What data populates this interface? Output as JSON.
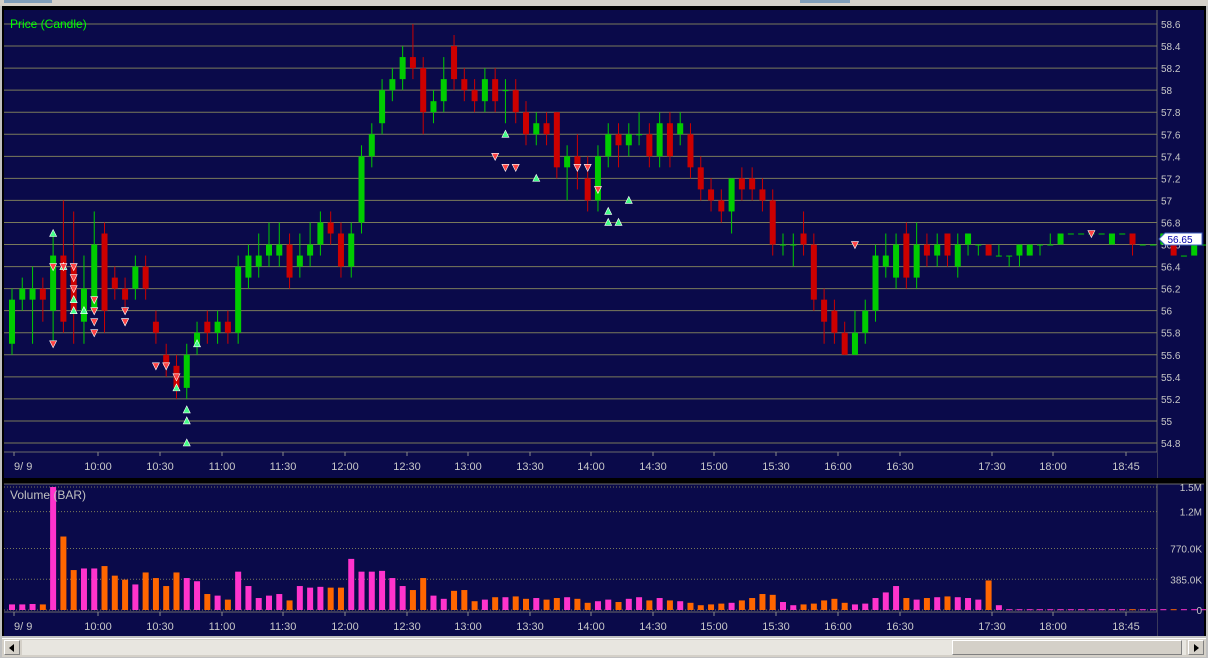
{
  "colors": {
    "panel": "#0a0a4a",
    "grid": "#7a7a5a",
    "up": "#00cc00",
    "down": "#cc0000",
    "axis_text": "#c8c8c8",
    "price_label": "#00ff00",
    "vol_label": "#c0c0c0",
    "vol_pink": "#ff33cc",
    "vol_orange": "#ff6600",
    "marker_up": "#44ff88",
    "marker_down": "#ff4444"
  },
  "chart_data": [
    {
      "type": "candlestick",
      "title": "Price (Candle)",
      "y_ticks": [
        "58.6",
        "58.4",
        "58.2",
        "58",
        "57.8",
        "57.6",
        "57.4",
        "57.2",
        "57",
        "56.8",
        "56.6",
        "56.4",
        "56.2",
        "56",
        "55.8",
        "55.6",
        "55.4",
        "55.2",
        "55",
        "54.8"
      ],
      "ylim": [
        54.7,
        58.7
      ],
      "last_price_label": "56.65",
      "x_ticks": [
        "9/ 9",
        "10:00",
        "10:30",
        "11:00",
        "11:30",
        "12:00",
        "12:30",
        "13:00",
        "13:30",
        "14:00",
        "14:30",
        "15:00",
        "15:30",
        "16:00",
        "16:30",
        "17:30",
        "18:00",
        "18:45"
      ],
      "candles": [
        [
          55.7,
          56.1,
          56.2,
          55.6
        ],
        [
          56.1,
          56.2,
          56.3,
          56.0
        ],
        [
          56.1,
          56.2,
          56.4,
          55.7
        ],
        [
          56.2,
          56.1,
          56.3,
          55.9
        ],
        [
          56.0,
          56.5,
          56.7,
          55.7
        ],
        [
          56.5,
          55.9,
          57.0,
          55.8
        ],
        [
          56.4,
          56.0,
          56.9,
          55.7
        ],
        [
          55.9,
          56.2,
          56.5,
          55.7
        ],
        [
          56.0,
          56.6,
          56.9,
          56.0
        ],
        [
          56.7,
          56.0,
          56.8,
          55.8
        ],
        [
          56.3,
          56.2,
          56.4,
          56.1
        ],
        [
          56.2,
          56.1,
          56.3,
          56.0
        ],
        [
          56.2,
          56.4,
          56.5,
          56.1
        ],
        [
          56.4,
          56.2,
          56.5,
          56.1
        ],
        [
          55.9,
          55.8,
          56.0,
          55.7
        ],
        [
          55.6,
          55.5,
          55.7,
          55.4
        ],
        [
          55.5,
          55.3,
          55.6,
          55.2
        ],
        [
          55.3,
          55.6,
          55.7,
          55.2
        ],
        [
          55.7,
          55.8,
          55.9,
          55.6
        ],
        [
          55.9,
          55.8,
          56.0,
          55.7
        ],
        [
          55.8,
          55.9,
          56.0,
          55.7
        ],
        [
          55.9,
          55.8,
          56.0,
          55.7
        ],
        [
          55.8,
          56.4,
          56.5,
          55.7
        ],
        [
          56.3,
          56.5,
          56.6,
          56.2
        ],
        [
          56.4,
          56.5,
          56.7,
          56.3
        ],
        [
          56.5,
          56.6,
          56.8,
          56.4
        ],
        [
          56.5,
          56.6,
          56.8,
          56.4
        ],
        [
          56.6,
          56.3,
          56.7,
          56.2
        ],
        [
          56.4,
          56.5,
          56.7,
          56.3
        ],
        [
          56.5,
          56.6,
          56.8,
          56.4
        ],
        [
          56.6,
          56.8,
          56.9,
          56.5
        ],
        [
          56.8,
          56.7,
          56.9,
          56.6
        ],
        [
          56.7,
          56.4,
          56.8,
          56.3
        ],
        [
          56.4,
          56.7,
          56.8,
          56.3
        ],
        [
          56.8,
          57.4,
          57.5,
          56.7
        ],
        [
          57.4,
          57.6,
          57.7,
          57.3
        ],
        [
          57.7,
          58.0,
          58.1,
          57.6
        ],
        [
          58.0,
          58.1,
          58.2,
          57.9
        ],
        [
          58.1,
          58.3,
          58.4,
          58.0
        ],
        [
          58.3,
          58.2,
          58.6,
          58.1
        ],
        [
          58.2,
          57.8,
          58.3,
          57.6
        ],
        [
          57.8,
          57.9,
          58.0,
          57.7
        ],
        [
          57.9,
          58.1,
          58.3,
          57.8
        ],
        [
          58.4,
          58.1,
          58.5,
          58.0
        ],
        [
          58.1,
          58.0,
          58.2,
          57.9
        ],
        [
          58.0,
          57.9,
          58.1,
          57.8
        ],
        [
          57.9,
          58.1,
          58.2,
          57.8
        ],
        [
          58.1,
          57.9,
          58.2,
          57.8
        ],
        [
          58.0,
          58.0,
          58.1,
          57.7
        ],
        [
          58.0,
          57.8,
          58.1,
          57.7
        ],
        [
          57.8,
          57.6,
          57.9,
          57.5
        ],
        [
          57.6,
          57.7,
          57.8,
          57.5
        ],
        [
          57.7,
          57.6,
          57.8,
          57.5
        ],
        [
          57.8,
          57.3,
          57.8,
          57.2
        ],
        [
          57.3,
          57.4,
          57.5,
          57.0
        ],
        [
          57.4,
          57.3,
          57.6,
          57.1
        ],
        [
          57.2,
          57.0,
          57.4,
          56.9
        ],
        [
          57.0,
          57.4,
          57.5,
          56.9
        ],
        [
          57.4,
          57.6,
          57.7,
          57.3
        ],
        [
          57.6,
          57.5,
          57.7,
          57.3
        ],
        [
          57.5,
          57.6,
          57.7,
          57.4
        ],
        [
          57.6,
          57.6,
          57.8,
          57.5
        ],
        [
          57.6,
          57.4,
          57.7,
          57.3
        ],
        [
          57.4,
          57.7,
          57.8,
          57.3
        ],
        [
          57.7,
          57.4,
          57.8,
          57.3
        ],
        [
          57.6,
          57.7,
          57.8,
          57.5
        ],
        [
          57.6,
          57.3,
          57.7,
          57.2
        ],
        [
          57.3,
          57.1,
          57.4,
          57.0
        ],
        [
          57.1,
          57.0,
          57.2,
          56.9
        ],
        [
          57.0,
          56.9,
          57.1,
          56.8
        ],
        [
          56.9,
          57.2,
          57.2,
          56.7
        ],
        [
          57.2,
          57.1,
          57.3,
          57.0
        ],
        [
          57.2,
          57.1,
          57.3,
          57.0
        ],
        [
          57.1,
          57.0,
          57.2,
          56.9
        ],
        [
          57.0,
          56.6,
          57.1,
          56.5
        ],
        [
          56.6,
          56.6,
          56.7,
          56.5
        ],
        [
          56.6,
          56.6,
          56.7,
          56.4
        ],
        [
          56.7,
          56.6,
          56.9,
          56.5
        ],
        [
          56.6,
          56.1,
          56.7,
          56.0
        ],
        [
          56.1,
          55.9,
          56.2,
          55.7
        ],
        [
          56.0,
          55.8,
          56.1,
          55.7
        ],
        [
          55.8,
          55.6,
          55.9,
          55.6
        ],
        [
          55.6,
          55.8,
          56.0,
          55.6
        ],
        [
          55.8,
          56.0,
          56.1,
          55.7
        ],
        [
          56.0,
          56.5,
          56.6,
          55.9
        ],
        [
          56.4,
          56.5,
          56.7,
          56.3
        ],
        [
          56.3,
          56.6,
          56.7,
          56.2
        ],
        [
          56.7,
          56.3,
          56.8,
          56.2
        ],
        [
          56.3,
          56.6,
          56.8,
          56.2
        ],
        [
          56.6,
          56.5,
          56.7,
          56.4
        ],
        [
          56.5,
          56.6,
          56.7,
          56.4
        ],
        [
          56.7,
          56.5,
          56.7,
          56.4
        ],
        [
          56.4,
          56.6,
          56.7,
          56.3
        ],
        [
          56.6,
          56.7,
          56.7,
          56.5
        ],
        [
          56.6,
          56.6,
          56.6,
          56.5
        ],
        [
          56.6,
          56.5,
          56.6,
          56.5
        ],
        [
          56.5,
          56.5,
          56.6,
          56.5
        ],
        [
          56.5,
          56.5,
          56.5,
          56.4
        ],
        [
          56.5,
          56.6,
          56.6,
          56.4
        ],
        [
          56.5,
          56.6,
          56.6,
          56.5
        ],
        [
          56.6,
          56.6,
          56.6,
          56.5
        ],
        [
          56.6,
          56.6,
          56.7,
          56.6
        ],
        [
          56.6,
          56.7,
          56.7,
          56.6
        ],
        [
          56.7,
          56.7,
          56.7,
          56.7
        ],
        [
          56.7,
          56.7,
          56.7,
          56.7
        ],
        [
          56.7,
          56.7,
          56.7,
          56.7
        ],
        [
          56.7,
          56.7,
          56.7,
          56.7
        ],
        [
          56.6,
          56.7,
          56.7,
          56.6
        ],
        [
          56.7,
          56.7,
          56.7,
          56.7
        ],
        [
          56.7,
          56.6,
          56.7,
          56.5
        ],
        [
          56.6,
          56.6,
          56.6,
          56.6
        ],
        [
          56.6,
          56.6,
          56.6,
          56.6
        ],
        [
          56.6,
          56.7,
          56.7,
          56.6
        ],
        [
          56.7,
          56.5,
          56.7,
          56.5
        ],
        [
          56.5,
          56.5,
          56.5,
          56.5
        ],
        [
          56.5,
          56.6,
          56.6,
          56.5
        ],
        [
          56.6,
          56.6,
          56.6,
          56.6
        ],
        [
          56.6,
          56.6,
          56.6,
          56.6
        ],
        [
          56.6,
          56.6,
          56.6,
          56.6
        ],
        [
          56.6,
          56.7,
          56.7,
          56.6
        ],
        [
          56.7,
          56.7,
          56.7,
          56.6
        ],
        [
          56.7,
          56.7,
          56.7,
          56.7
        ],
        [
          56.7,
          56.7,
          56.7,
          56.7
        ],
        [
          56.7,
          56.7,
          56.7,
          56.7
        ],
        [
          56.7,
          56.7,
          56.7,
          56.7
        ],
        [
          56.7,
          56.7,
          56.7,
          56.7
        ],
        [
          56.7,
          56.7,
          56.7,
          56.7
        ],
        [
          56.7,
          56.7,
          56.7,
          56.7
        ]
      ],
      "signals_up": [
        [
          4,
          56.7
        ],
        [
          5,
          56.4
        ],
        [
          6,
          56.1
        ],
        [
          6,
          56.0
        ],
        [
          7,
          56.0
        ],
        [
          16,
          55.3
        ],
        [
          17,
          55.1
        ],
        [
          17,
          55.0
        ],
        [
          17,
          54.8
        ],
        [
          18,
          55.7
        ],
        [
          48,
          57.6
        ],
        [
          51,
          57.2
        ],
        [
          58,
          56.8
        ],
        [
          58,
          56.9
        ],
        [
          59,
          56.8
        ],
        [
          60,
          57.0
        ]
      ],
      "signals_down": [
        [
          4,
          56.4
        ],
        [
          4,
          55.7
        ],
        [
          5,
          56.4
        ],
        [
          6,
          56.4
        ],
        [
          6,
          56.3
        ],
        [
          6,
          56.2
        ],
        [
          8,
          56.1
        ],
        [
          8,
          56.0
        ],
        [
          8,
          55.9
        ],
        [
          8,
          55.8
        ],
        [
          11,
          56.0
        ],
        [
          11,
          55.9
        ],
        [
          11,
          55.9
        ],
        [
          14,
          55.5
        ],
        [
          15,
          55.5
        ],
        [
          16,
          55.4
        ],
        [
          47,
          57.4
        ],
        [
          48,
          57.3
        ],
        [
          49,
          57.3
        ],
        [
          55,
          57.3
        ],
        [
          56,
          57.3
        ],
        [
          57,
          57.1
        ],
        [
          82,
          56.6
        ],
        [
          105,
          56.7
        ]
      ]
    },
    {
      "type": "bar",
      "title": "Volume (BAR)",
      "y_ticks": [
        "1.5M",
        "1.2M",
        "770.0K",
        "385.0K",
        "0"
      ],
      "ylim": [
        0,
        1540000
      ],
      "x_ticks": [
        "9/ 9",
        "10:00",
        "10:30",
        "11:00",
        "11:30",
        "12:00",
        "12:30",
        "13:00",
        "13:30",
        "14:00",
        "14:30",
        "15:00",
        "15:30",
        "16:00",
        "16:30",
        "17:30",
        "18:00",
        "18:45"
      ],
      "values": [
        70000,
        70000,
        75000,
        70000,
        1540000,
        920000,
        500000,
        520000,
        520000,
        550000,
        430000,
        380000,
        320000,
        470000,
        400000,
        300000,
        470000,
        400000,
        360000,
        200000,
        180000,
        130000,
        480000,
        300000,
        150000,
        180000,
        200000,
        120000,
        300000,
        280000,
        290000,
        280000,
        280000,
        640000,
        480000,
        480000,
        490000,
        400000,
        300000,
        250000,
        400000,
        180000,
        140000,
        240000,
        250000,
        110000,
        130000,
        160000,
        160000,
        170000,
        140000,
        150000,
        130000,
        150000,
        160000,
        140000,
        90000,
        110000,
        130000,
        100000,
        140000,
        160000,
        120000,
        150000,
        120000,
        110000,
        90000,
        60000,
        70000,
        80000,
        90000,
        120000,
        150000,
        200000,
        190000,
        100000,
        60000,
        70000,
        80000,
        120000,
        140000,
        90000,
        70000,
        80000,
        150000,
        220000,
        300000,
        150000,
        130000,
        150000,
        160000,
        170000,
        160000,
        150000,
        130000,
        370000,
        60000,
        10000,
        10000,
        10000,
        10000,
        10000,
        10000,
        10000,
        10000,
        10000,
        10000,
        10000,
        10000,
        10000,
        10000,
        10000,
        10000,
        10000,
        10000,
        10000,
        10000,
        10000,
        10000,
        10000,
        10000,
        10000,
        10000,
        10000,
        10000,
        10000,
        10000,
        10000,
        10000,
        10000,
        10000,
        10000
      ],
      "bar_colors": "pink for up-candle bars, orange for down-candle bars"
    }
  ]
}
